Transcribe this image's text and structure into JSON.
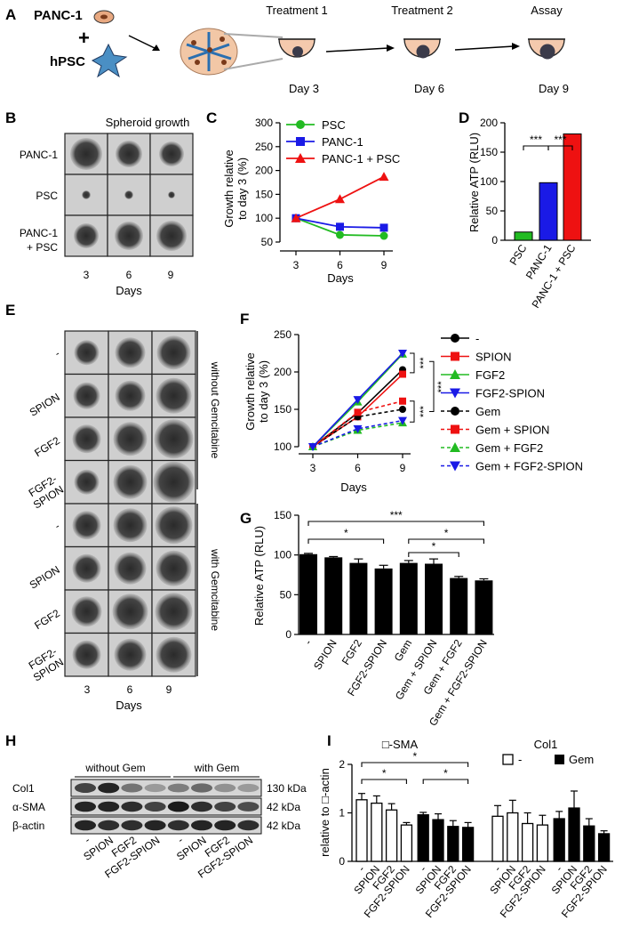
{
  "panels": {
    "a": {
      "label": "A",
      "cell1": "PANC-1",
      "plus": "+",
      "cell2": "hPSC",
      "steps": [
        {
          "title": "Treatment 1",
          "day": "Day 3"
        },
        {
          "title": "Treatment 2",
          "day": "Day 6"
        },
        {
          "title": "Assay",
          "day": "Day 9"
        }
      ]
    },
    "b": {
      "label": "B",
      "title": "Spheroid growth",
      "rows": [
        "PANC-1",
        "PSC",
        "PANC-1\n+ PSC"
      ],
      "cols": [
        "3",
        "6",
        "9"
      ],
      "xlabel": "Days"
    },
    "c": {
      "label": "C"
    },
    "d": {
      "label": "D"
    },
    "e": {
      "label": "E",
      "rows": [
        "-",
        "SPION",
        "FGF2",
        "FGF2-\nSPION",
        "-",
        "SPION",
        "FGF2",
        "FGF2-\nSPION"
      ],
      "cols": [
        "3",
        "6",
        "9"
      ],
      "xlabel": "Days",
      "group1": "without Gemcitabine",
      "group2": "with Gemcitabine"
    },
    "f": {
      "label": "F"
    },
    "g": {
      "label": "G"
    },
    "h": {
      "label": "H",
      "group1": "without Gem",
      "group2": "with Gem",
      "bands": [
        {
          "name": "Col1",
          "size": "130 kDa"
        },
        {
          "name": "α-SMA",
          "size": "42 kDa"
        },
        {
          "name": "β-actin",
          "size": "42 kDa"
        }
      ],
      "lanes": [
        "-",
        "SPION",
        "FGF2",
        "FGF2-SPION",
        "-",
        "SPION",
        "FGF2",
        "FGF2-SPION"
      ]
    },
    "i": {
      "label": "I"
    }
  },
  "colors": {
    "green": "#22bb22",
    "blue": "#1a1ae6",
    "red": "#ee1111",
    "black": "#000000"
  },
  "chart_data": [
    {
      "id": "C",
      "type": "line",
      "x": [
        3,
        6,
        9
      ],
      "xlabel": "Days",
      "ylabel": "Growth relative\nto day 3 (%)",
      "ylim": [
        50,
        300
      ],
      "yticks": [
        50,
        100,
        150,
        200,
        250,
        300
      ],
      "series": [
        {
          "name": "PSC",
          "color": "#22bb22",
          "marker": "circle",
          "values": [
            100,
            65,
            63
          ]
        },
        {
          "name": "PANC-1",
          "color": "#1a1ae6",
          "marker": "square",
          "values": [
            100,
            82,
            80
          ]
        },
        {
          "name": "PANC-1 + PSC",
          "color": "#ee1111",
          "marker": "triangle",
          "values": [
            100,
            140,
            187
          ]
        }
      ]
    },
    {
      "id": "D",
      "type": "bar",
      "categories": [
        "PSC",
        "PANC-1",
        "PANC-1 + PSC"
      ],
      "values": [
        14,
        98,
        181
      ],
      "colors": [
        "#22bb22",
        "#1a1ae6",
        "#ee1111"
      ],
      "ylabel": "Relative ATP (RLU)",
      "ylim": [
        0,
        200
      ],
      "yticks": [
        0,
        50,
        100,
        150,
        200
      ],
      "significance": [
        {
          "between": [
            "PSC",
            "PANC-1"
          ],
          "label": "***"
        },
        {
          "between": [
            "PANC-1",
            "PANC-1 + PSC"
          ],
          "label": "***"
        }
      ]
    },
    {
      "id": "F",
      "type": "line",
      "x": [
        3,
        6,
        9
      ],
      "xlabel": "Days",
      "ylabel": "Growth relative\nto day 3 (%)",
      "ylim": [
        90,
        250
      ],
      "yticks": [
        100,
        150,
        200,
        250
      ],
      "series": [
        {
          "name": "-",
          "color": "#000000",
          "marker": "circle",
          "dashed": false,
          "values": [
            100,
            145,
            203
          ]
        },
        {
          "name": "SPION",
          "color": "#ee1111",
          "marker": "square",
          "dashed": false,
          "values": [
            100,
            140,
            197
          ]
        },
        {
          "name": "FGF2",
          "color": "#22bb22",
          "marker": "triangle",
          "dashed": false,
          "values": [
            100,
            160,
            224
          ]
        },
        {
          "name": "FGF2-SPION",
          "color": "#1a1ae6",
          "marker": "triangle-down",
          "dashed": false,
          "values": [
            100,
            163,
            225
          ]
        },
        {
          "name": "Gem",
          "color": "#000000",
          "marker": "circle",
          "dashed": true,
          "values": [
            100,
            140,
            150
          ]
        },
        {
          "name": "Gem + SPION",
          "color": "#ee1111",
          "marker": "square",
          "dashed": true,
          "values": [
            100,
            146,
            161
          ]
        },
        {
          "name": "Gem + FGF2",
          "color": "#22bb22",
          "marker": "triangle",
          "dashed": true,
          "values": [
            100,
            122,
            132
          ]
        },
        {
          "name": "Gem + FGF2-SPION",
          "color": "#1a1ae6",
          "marker": "triangle-down",
          "dashed": true,
          "values": [
            100,
            124,
            135
          ]
        }
      ],
      "significance": [
        "***",
        "***",
        "***"
      ]
    },
    {
      "id": "G",
      "type": "bar",
      "categories": [
        "-",
        "SPION",
        "FGF2",
        "FGF2-SPION",
        "Gem",
        "Gem + SPION",
        "Gem + FGF2",
        "Gem + FGF2-SPION"
      ],
      "values": [
        101,
        97,
        90,
        83,
        90,
        89,
        71,
        68
      ],
      "errors": [
        1,
        1,
        5,
        4,
        3,
        6,
        2,
        2
      ],
      "ylabel": "Relative ATP (RLU)",
      "ylim": [
        0,
        150
      ],
      "yticks": [
        0,
        50,
        100,
        150
      ],
      "significance": [
        {
          "from": "-",
          "to": "Gem + FGF2-SPION",
          "label": "***"
        },
        {
          "from": "-",
          "to": "FGF2-SPION",
          "label": "*"
        },
        {
          "from": "Gem",
          "to": "Gem + FGF2-SPION",
          "label": "*"
        },
        {
          "from": "Gem",
          "to": "Gem + FGF2",
          "label": "*"
        }
      ]
    },
    {
      "id": "I",
      "type": "bar",
      "ylabel": "relative to □-actin",
      "ylim": [
        0,
        2
      ],
      "yticks": [
        0,
        1,
        2
      ],
      "legend": [
        "-",
        "Gem"
      ],
      "groups": [
        {
          "name": "□-SMA",
          "categories": [
            "-",
            "SPION",
            "FGF2",
            "FGF2-SPION",
            "-",
            "SPION",
            "FGF2",
            "FGF2-SPION"
          ],
          "values": [
            1.27,
            1.2,
            1.06,
            0.75,
            0.96,
            0.86,
            0.72,
            0.7
          ],
          "errors": [
            0.13,
            0.15,
            0.13,
            0.05,
            0.05,
            0.12,
            0.12,
            0.1
          ],
          "filled": [
            false,
            false,
            false,
            false,
            true,
            true,
            true,
            true
          ]
        },
        {
          "name": "Col1",
          "categories": [
            "-",
            "SPION",
            "FGF2",
            "FGF2-SPION",
            "-",
            "SPION",
            "FGF2",
            "FGF2-SPION"
          ],
          "values": [
            0.93,
            1.0,
            0.78,
            0.75,
            0.88,
            1.1,
            0.73,
            0.57
          ],
          "errors": [
            0.22,
            0.26,
            0.22,
            0.2,
            0.15,
            0.35,
            0.15,
            0.06
          ],
          "filled": [
            false,
            false,
            false,
            false,
            true,
            true,
            true,
            true
          ]
        }
      ],
      "significance": [
        {
          "from": "-",
          "to": "FGF2-SPION (Gem)",
          "label": "*"
        },
        {
          "from": "-",
          "to": "FGF2-SPION",
          "label": "*"
        },
        {
          "from": "- (Gem)",
          "to": "FGF2-SPION (Gem)",
          "label": "*"
        }
      ]
    }
  ]
}
